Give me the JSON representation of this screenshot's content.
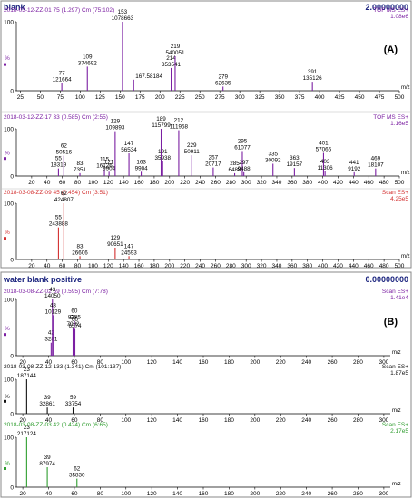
{
  "chart_data": [
    {
      "type": "bar",
      "group": "A",
      "title": "blank",
      "scale_value": "2.00000000",
      "group_label": "(A)",
      "header": "2018-03-12-ZZ-01 75 (1.297) Cm (75:102)",
      "mode": "TOF MS ES+",
      "intensity": "1.08e6",
      "color": "#7b1fa2",
      "xlim": [
        20,
        500
      ],
      "xticks": [
        25,
        50,
        75,
        100,
        125,
        150,
        175,
        200,
        225,
        250,
        275,
        300,
        325,
        350,
        375,
        400,
        425,
        450,
        475,
        500
      ],
      "xlabel": "m/z",
      "ylabel": "%",
      "ylim": [
        0,
        100
      ],
      "yticks": [
        0,
        100
      ],
      "peaks": [
        {
          "x": 77,
          "y": 11,
          "label": "77",
          "count": "121664"
        },
        {
          "x": 109,
          "y": 35,
          "label": "109",
          "count": "374692"
        },
        {
          "x": 153,
          "y": 100,
          "label": "153",
          "count": "1078663"
        },
        {
          "x": 167,
          "y": 16,
          "label": "167.58184",
          "count": ""
        },
        {
          "x": 214,
          "y": 33,
          "label": "214",
          "count": "353541"
        },
        {
          "x": 219,
          "y": 50,
          "label": "219",
          "count": "540051"
        },
        {
          "x": 279,
          "y": 6,
          "label": "279",
          "count": "62635"
        },
        {
          "x": 391,
          "y": 13,
          "label": "391",
          "count": "135126"
        }
      ]
    },
    {
      "type": "bar",
      "group": "A",
      "header": "2018-03-12-ZZ-17 33 (0.585) Cm (2:55)",
      "mode": "TOF MS ES+",
      "intensity": "1.16e5",
      "color": "#7b1fa2",
      "xlim": [
        0,
        500
      ],
      "xticks": [
        20,
        40,
        60,
        80,
        100,
        120,
        140,
        160,
        180,
        200,
        220,
        240,
        260,
        280,
        300,
        320,
        340,
        360,
        380,
        400,
        420,
        440,
        460,
        480,
        500
      ],
      "xlabel": "m/z",
      "ylabel": "%",
      "ylim": [
        0,
        100
      ],
      "yticks": [
        0,
        100
      ],
      "peaks": [
        {
          "x": 55,
          "y": 16,
          "label": "55",
          "count": "18319"
        },
        {
          "x": 62,
          "y": 43,
          "label": "62",
          "count": "50516"
        },
        {
          "x": 83,
          "y": 6,
          "label": "83",
          "count": "7351"
        },
        {
          "x": 115,
          "y": 14,
          "label": "115",
          "count": "16126"
        },
        {
          "x": 121,
          "y": 9,
          "label": "121",
          "count": "9904"
        },
        {
          "x": 129,
          "y": 95,
          "label": "129",
          "count": "109893"
        },
        {
          "x": 147,
          "y": 48,
          "label": "147",
          "count": "56534"
        },
        {
          "x": 163,
          "y": 9,
          "label": "163",
          "count": "9904"
        },
        {
          "x": 189,
          "y": 100,
          "label": "189",
          "count": "115799"
        },
        {
          "x": 191,
          "y": 31,
          "label": "191",
          "count": "35938"
        },
        {
          "x": 212,
          "y": 97,
          "label": "212",
          "count": "111958"
        },
        {
          "x": 229,
          "y": 44,
          "label": "229",
          "count": "50911"
        },
        {
          "x": 257,
          "y": 18,
          "label": "257",
          "count": "20717"
        },
        {
          "x": 285,
          "y": 6,
          "label": "285",
          "count": "6488"
        },
        {
          "x": 295,
          "y": 53,
          "label": "295",
          "count": "61077"
        },
        {
          "x": 297,
          "y": 8,
          "label": "297",
          "count": "9488"
        },
        {
          "x": 335,
          "y": 26,
          "label": "335",
          "count": "30092"
        },
        {
          "x": 363,
          "y": 17,
          "label": "363",
          "count": "19157"
        },
        {
          "x": 401,
          "y": 49,
          "label": "401",
          "count": "57066"
        },
        {
          "x": 403,
          "y": 10,
          "label": "403",
          "count": "11306"
        },
        {
          "x": 441,
          "y": 8,
          "label": "441",
          "count": "9192"
        },
        {
          "x": 469,
          "y": 16,
          "label": "469",
          "count": "18107"
        }
      ]
    },
    {
      "type": "bar",
      "group": "A",
      "header": "2018-03-08-ZZ-09 45 (0.454) Cm (3:51)",
      "mode": "Scan ES+",
      "intensity": "4.25e5",
      "color": "#d32f2f",
      "xlim": [
        0,
        500
      ],
      "xticks": [
        20,
        40,
        60,
        80,
        100,
        120,
        140,
        160,
        180,
        200,
        220,
        240,
        260,
        280,
        300,
        320,
        340,
        360,
        380,
        400,
        420,
        440,
        460,
        480,
        500
      ],
      "xlabel": "m/z",
      "ylabel": "%",
      "ylim": [
        0,
        100
      ],
      "yticks": [
        0,
        100
      ],
      "peaks": [
        {
          "x": 55,
          "y": 57,
          "label": "55",
          "count": "243888"
        },
        {
          "x": 62,
          "y": 100,
          "label": "62",
          "count": "424807"
        },
        {
          "x": 83,
          "y": 6,
          "label": "83",
          "count": "26606"
        },
        {
          "x": 129,
          "y": 21,
          "label": "129",
          "count": "90651"
        },
        {
          "x": 147,
          "y": 6,
          "label": "147",
          "count": "24593"
        }
      ]
    },
    {
      "type": "bar",
      "group": "B",
      "title": "water blank positive",
      "scale_value": "0.00000000",
      "group_label": "(B)",
      "header": "2018-03-08-ZZ-02 59 (0.595) Cm (7:78)",
      "mode": "Scan ES+",
      "intensity": "1.41e4",
      "color": "#7b1fa2",
      "xlim": [
        15,
        305
      ],
      "xticks": [
        20,
        40,
        60,
        80,
        100,
        120,
        140,
        160,
        180,
        200,
        220,
        240,
        260,
        280,
        300
      ],
      "xlabel": "m/z",
      "ylabel": "%",
      "ylim": [
        0,
        100
      ],
      "yticks": [
        0,
        100
      ],
      "peaks": [
        {
          "x": 42,
          "y": 23,
          "label": "42",
          "count": "3281"
        },
        {
          "x": 43,
          "y": 100,
          "label": "43",
          "count": "14050"
        },
        {
          "x": 43.4,
          "y": 72,
          "label": "43",
          "count": "10129"
        },
        {
          "x": 59,
          "y": 50,
          "label": "59",
          "count": "7032"
        },
        {
          "x": 60,
          "y": 62,
          "label": "60",
          "count": "8785"
        },
        {
          "x": 60.4,
          "y": 47,
          "label": "60",
          "count": "6574"
        }
      ]
    },
    {
      "type": "bar",
      "group": "B",
      "header": "2018-03-08-ZZ-12 133 (1.341) Cm (101:137)",
      "mode": "Scan ES+",
      "intensity": "1.87e5",
      "color": "#111111",
      "xlim": [
        15,
        305
      ],
      "xticks": [
        20,
        40,
        60,
        80,
        100,
        120,
        140,
        160,
        180,
        200,
        220,
        240,
        260,
        280,
        300
      ],
      "xlabel": "m/z",
      "ylabel": "%",
      "ylim": [
        0,
        100
      ],
      "yticks": [
        0,
        100
      ],
      "peaks": [
        {
          "x": 23,
          "y": 100,
          "label": "23",
          "count": "187144"
        },
        {
          "x": 39,
          "y": 18,
          "label": "39",
          "count": "32861"
        },
        {
          "x": 59,
          "y": 18,
          "label": "59",
          "count": "33754"
        }
      ]
    },
    {
      "type": "bar",
      "group": "B",
      "header": "2018-03-08-ZZ-03 42 (0.424) Cm (6:65)",
      "mode": "Scan ES+",
      "intensity": "2.17e5",
      "color": "#2e9d2e",
      "xlim": [
        15,
        305
      ],
      "xticks": [
        20,
        40,
        60,
        80,
        100,
        120,
        140,
        160,
        180,
        200,
        220,
        240,
        260,
        280,
        300
      ],
      "xlabel": "m/z",
      "ylabel": "%",
      "ylim": [
        0,
        100
      ],
      "yticks": [
        0,
        100
      ],
      "peaks": [
        {
          "x": 23,
          "y": 100,
          "label": "23",
          "count": "217124"
        },
        {
          "x": 39,
          "y": 40,
          "label": "39",
          "count": "87974"
        },
        {
          "x": 62,
          "y": 17,
          "label": "62",
          "count": "35830"
        }
      ]
    }
  ]
}
